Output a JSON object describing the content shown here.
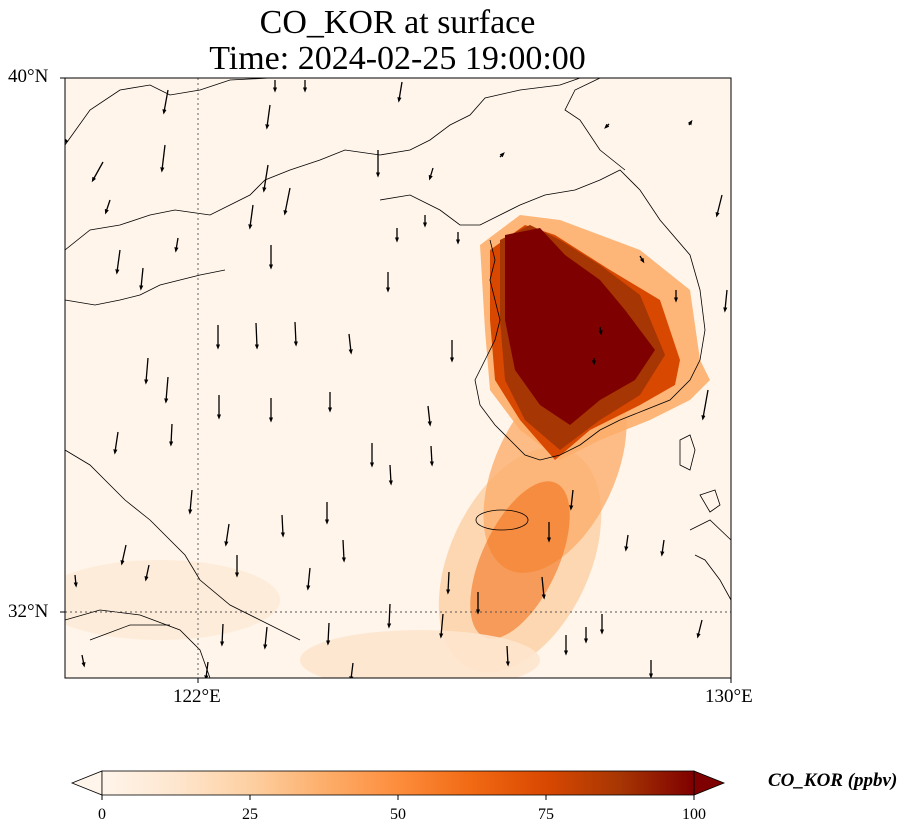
{
  "title": "CO_KOR at surface",
  "subtitle": "Time: 2024-02-25 19:00:00",
  "axes": {
    "lat_labels": [
      "40°N",
      "32°N"
    ],
    "lon_labels": [
      "122°E",
      "130°E"
    ]
  },
  "colorbar": {
    "label": "CO_KOR (ppbv)",
    "ticks": [
      "0",
      "25",
      "50",
      "75",
      "100"
    ],
    "min": 0,
    "max": 100,
    "extend": "both",
    "colormap": [
      "#fff5eb",
      "#fee6ce",
      "#fdd0a2",
      "#fdae6b",
      "#fd8d3c",
      "#f16913",
      "#d94801",
      "#a63603",
      "#7f0000"
    ]
  },
  "map_extent": {
    "lon": [
      120,
      130
    ],
    "lat": [
      31,
      40
    ]
  },
  "gridlines": {
    "lon": [
      122
    ],
    "lat": [
      32
    ],
    "style": "dotted"
  },
  "colors": {
    "high": "#7f0000",
    "background": "#fff5eb",
    "coast": "#000000"
  }
}
